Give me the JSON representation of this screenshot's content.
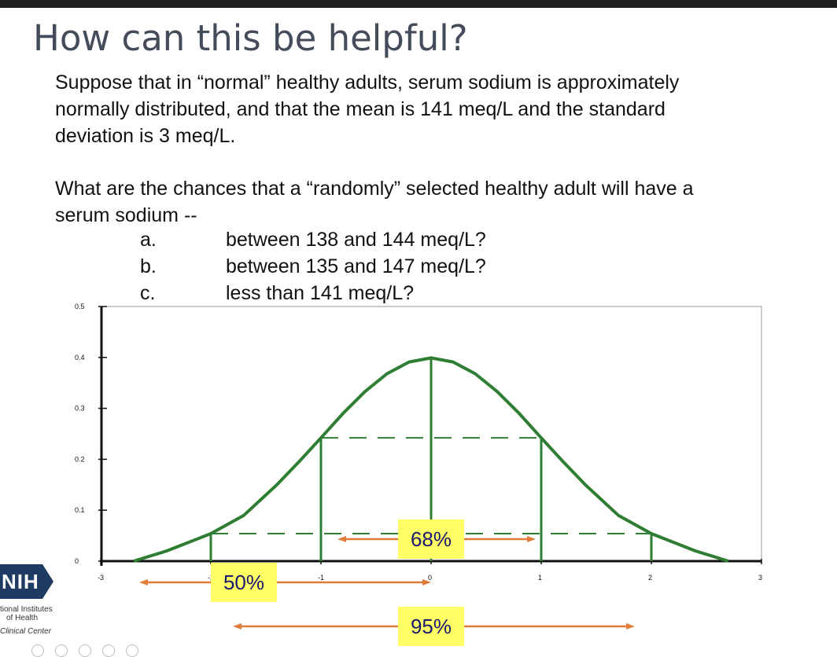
{
  "slide": {
    "title": "How can this be helpful?",
    "paragraph1": [
      "Suppose that in “normal” healthy adults, serum sodium is approximately",
      "normally distributed, and that the mean is 141 meq/L and the standard",
      "deviation is 3 meq/L."
    ],
    "paragraph2": [
      "What are the chances that a “randomly” selected healthy adult will have a",
      "serum sodium --"
    ],
    "questions": [
      {
        "letter": "a.",
        "text": "between 138 and 144 meq/L?"
      },
      {
        "letter": "b.",
        "text": "between 135 and 147 meq/L?"
      },
      {
        "letter": "c.",
        "text": "less than 141 meq/L?"
      }
    ]
  },
  "logo": {
    "mark": "NIH",
    "line1": "tional Institutes",
    "line2": "of Health",
    "line3": "Clinical Center",
    "brand_color": "#1f3a63"
  },
  "chart_data": {
    "type": "line",
    "title": "",
    "xlabel": "",
    "ylabel": "",
    "xlim": [
      -3,
      3
    ],
    "ylim": [
      0,
      0.5
    ],
    "x_ticks": [
      "-3",
      "-2",
      "-1",
      "0",
      "1",
      "2",
      "3"
    ],
    "y_ticks": [
      "0",
      "0.1",
      "0.2",
      "0.3",
      "0.4",
      "0.5"
    ],
    "series": [
      {
        "color": "#2e7d32",
        "x": [
          -2.7,
          -2.4,
          -2.0,
          -1.7,
          -1.4,
          -1.2,
          -1.0,
          -0.8,
          -0.6,
          -0.4,
          -0.2,
          0.0,
          0.2,
          0.4,
          0.6,
          0.8,
          1.0,
          1.2,
          1.4,
          1.7,
          2.0,
          2.4,
          2.7
        ],
        "y": [
          0.0,
          0.02,
          0.054,
          0.09,
          0.15,
          0.195,
          0.242,
          0.29,
          0.333,
          0.368,
          0.391,
          0.399,
          0.391,
          0.368,
          0.333,
          0.29,
          0.242,
          0.195,
          0.15,
          0.09,
          0.054,
          0.02,
          0.0
        ]
      }
    ],
    "vertical_lines": [
      {
        "x": -2,
        "y": 0.054
      },
      {
        "x": -1,
        "y": 0.242
      },
      {
        "x": 0,
        "y": 0.399
      },
      {
        "x": 1,
        "y": 0.242
      },
      {
        "x": 2,
        "y": 0.054
      }
    ],
    "dashed_lines": [
      {
        "x1": -1,
        "x2": 1,
        "y": 0.242
      },
      {
        "x1": -2,
        "x2": 2,
        "y": 0.054
      }
    ],
    "annotations": [
      {
        "text": "68%",
        "x1": -0.85,
        "x2": 0.95,
        "y": -0.0
      }
    ],
    "below_annotations": [
      {
        "text": "50%",
        "x1": -2.65,
        "x2": 0.0,
        "row": 1
      },
      {
        "text": "95%",
        "x1": -1.8,
        "x2": 1.85,
        "row": 2
      }
    ],
    "colors": {
      "curve": "#2e7d32",
      "arrow": "#e07b39",
      "label_bg": "#ffff66",
      "label_text": "#1a1a6e"
    }
  }
}
